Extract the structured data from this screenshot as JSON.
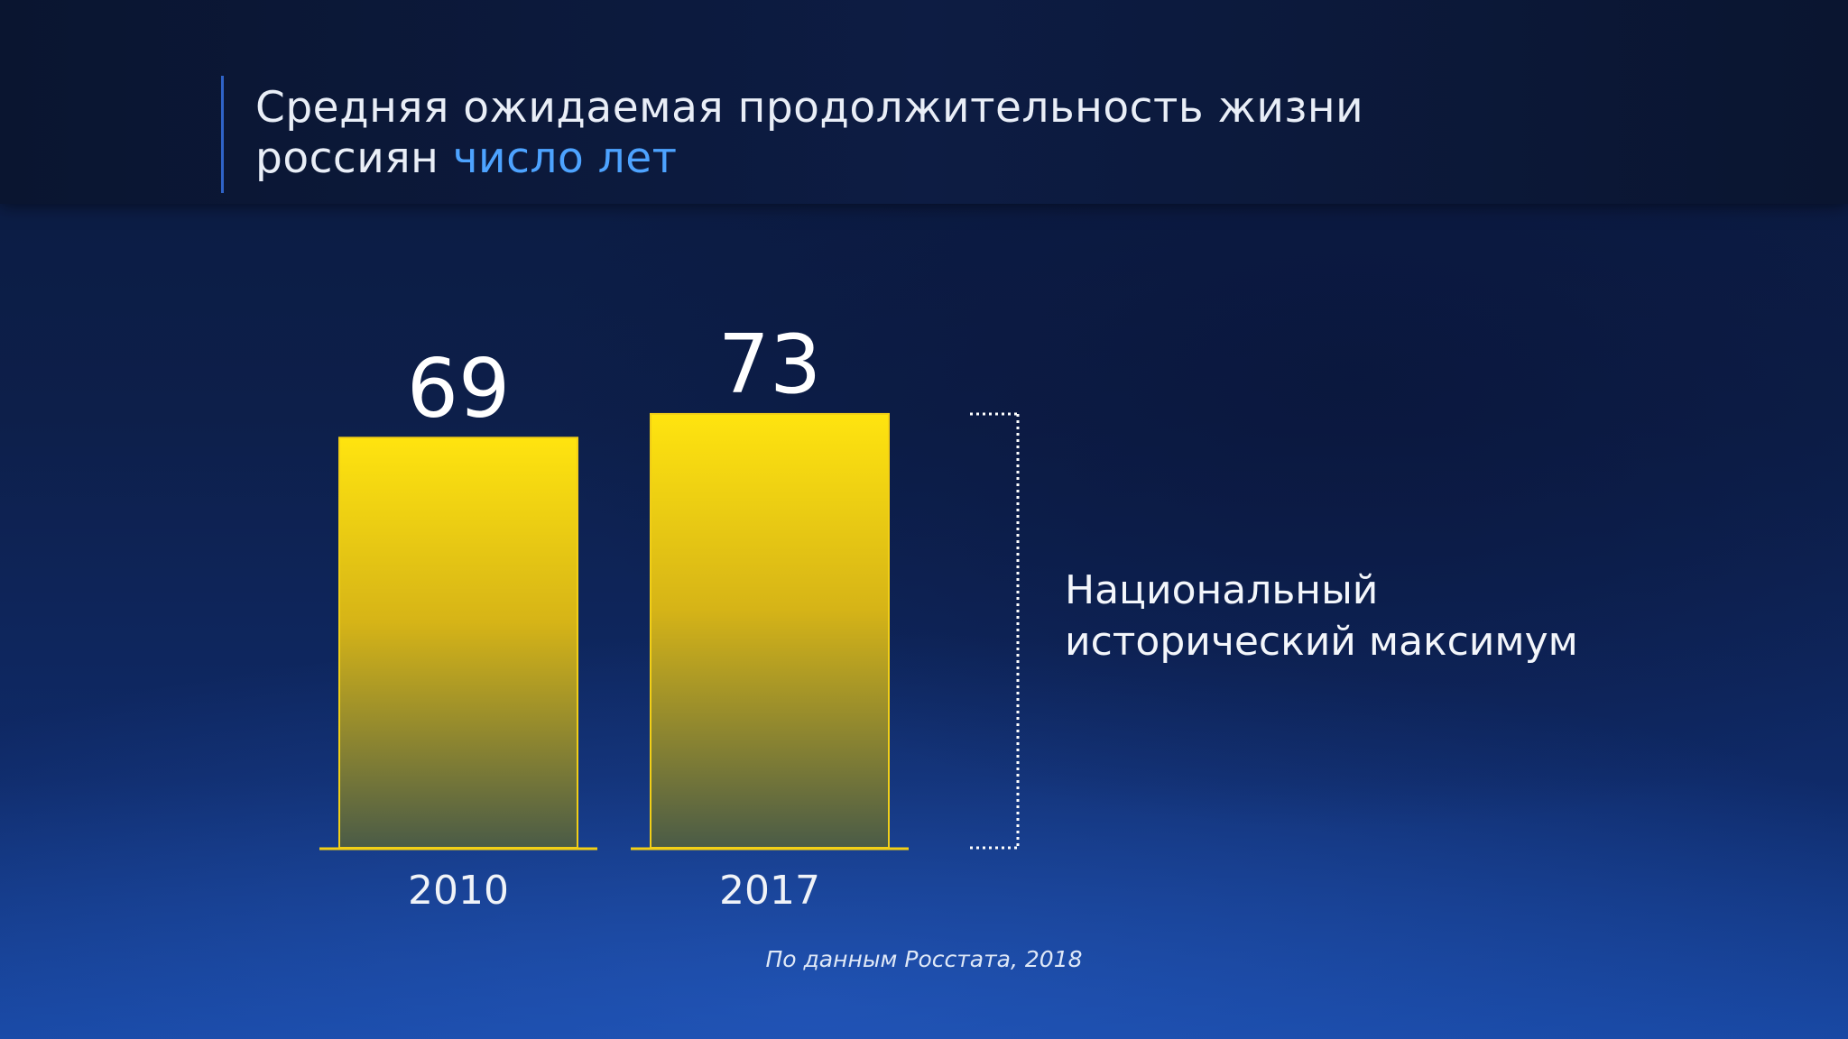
{
  "header": {
    "title_main": "Средняя ожидаемая продолжительность жизни россиян",
    "title_unit": "число лет"
  },
  "chart_data": {
    "type": "bar",
    "categories": [
      "2010",
      "2017"
    ],
    "values": [
      69,
      73
    ],
    "title": "Средняя ожидаемая продолжительность жизни россиян",
    "ylabel": "число лет",
    "colors": {
      "bar_top": "#ffe40f",
      "bar_bottom": "#4a5b47",
      "outline": "#f2cf16"
    }
  },
  "annotation": {
    "text": "Национальный исторический максимум",
    "target_category": "2017"
  },
  "source": "По данным Росстата, 2018"
}
